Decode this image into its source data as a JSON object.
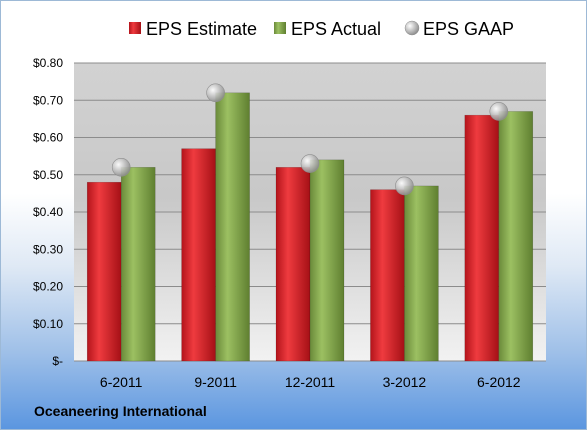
{
  "chart_data": {
    "type": "bar",
    "categories": [
      "6-2011",
      "9-2011",
      "12-2011",
      "3-2012",
      "6-2012"
    ],
    "series": [
      {
        "name": "EPS Estimate",
        "values": [
          0.48,
          0.57,
          0.52,
          0.46,
          0.66
        ],
        "color": "#d42027"
      },
      {
        "name": "EPS Actual",
        "values": [
          0.52,
          0.72,
          0.54,
          0.47,
          0.67
        ],
        "color": "#7fa04a"
      },
      {
        "name": "EPS GAAP",
        "kind": "marker",
        "values": [
          0.52,
          0.72,
          0.53,
          0.47,
          0.67
        ],
        "color": "#b4b4b4"
      }
    ],
    "ylim": [
      0,
      0.8
    ],
    "yticks": [
      {
        "value": 0.0,
        "label": "$-"
      },
      {
        "value": 0.1,
        "label": "$0.10"
      },
      {
        "value": 0.2,
        "label": "$0.20"
      },
      {
        "value": 0.3,
        "label": "$0.30"
      },
      {
        "value": 0.4,
        "label": "$0.40"
      },
      {
        "value": 0.5,
        "label": "$0.50"
      },
      {
        "value": 0.6,
        "label": "$0.60"
      },
      {
        "value": 0.7,
        "label": "$0.70"
      },
      {
        "value": 0.8,
        "label": "$0.80"
      }
    ],
    "grid": true,
    "legend_position": "top",
    "footnote": "Oceaneering International"
  }
}
